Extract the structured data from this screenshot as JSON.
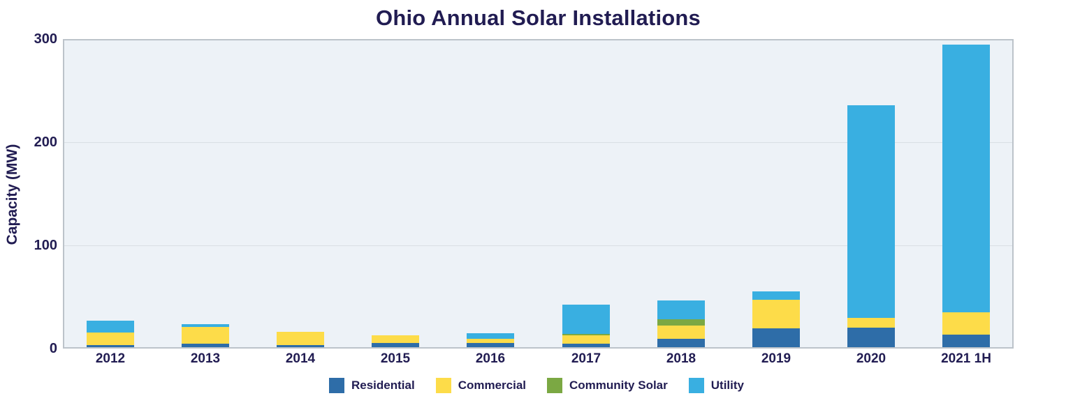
{
  "title": "Ohio Annual Solar Installations",
  "y_axis": {
    "label": "Capacity (MW)"
  },
  "chart_data": {
    "type": "bar",
    "stacked": true,
    "title": "Ohio Annual Solar Installations",
    "xlabel": "",
    "ylabel": "Capacity (MW)",
    "ylim": [
      0,
      300
    ],
    "yticks": [
      0,
      100,
      200,
      300
    ],
    "gridlines": [
      100,
      200
    ],
    "grid": true,
    "legend_position": "bottom",
    "plot_bg_color": "#edf2f7",
    "text_color": "#211c52",
    "categories": [
      "2012",
      "2013",
      "2014",
      "2015",
      "2016",
      "2017",
      "2018",
      "2019",
      "2020",
      "2021 1H"
    ],
    "series": [
      {
        "name": "Residential",
        "color": "#2e6da8",
        "values": [
          2,
          3.5,
          2,
          4,
          4,
          3.5,
          8,
          18,
          19,
          12
        ]
      },
      {
        "name": "Commercial",
        "color": "#fddc49",
        "values": [
          12,
          16,
          13,
          7.5,
          4,
          8,
          13,
          28,
          9.5,
          21.5
        ]
      },
      {
        "name": "Community Solar",
        "color": "#7ba843",
        "values": [
          0,
          0,
          0,
          0,
          0,
          1.5,
          6,
          0,
          0,
          0
        ]
      },
      {
        "name": "Utility",
        "color": "#39afe1",
        "values": [
          11.5,
          2.5,
          0,
          0,
          5.5,
          28,
          18.5,
          8,
          206,
          260
        ]
      }
    ],
    "totals": [
      25.5,
      22,
      15,
      11.5,
      13.5,
      41,
      45.5,
      54,
      234.5,
      293.5
    ]
  }
}
